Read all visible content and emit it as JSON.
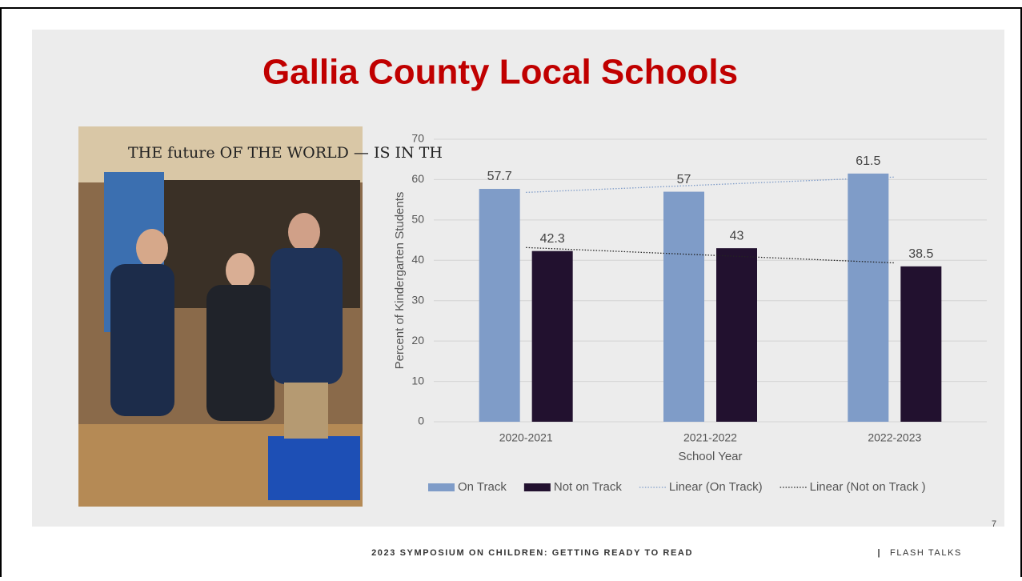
{
  "slide_title": "Gallia County Local Schools",
  "photo_text": "THE future OF THE WORLD — IS IN TH",
  "chart_data": {
    "type": "bar",
    "categories": [
      "2020-2021",
      "2021-2022",
      "2022-2023"
    ],
    "series": [
      {
        "name": "On Track",
        "color": "#7f9cc8",
        "values": [
          57.7,
          57,
          61.5
        ],
        "trendline": {
          "name": "Linear (On Track)",
          "color": "#7f9cc8"
        }
      },
      {
        "name": "Not on Track",
        "color": "#22112f",
        "values": [
          42.3,
          43,
          38.5
        ],
        "trendline": {
          "name": "Linear (Not on Track )",
          "color": "#222222"
        }
      }
    ],
    "xlabel": "School Year",
    "ylabel": "Percent of Kindergarten Students",
    "ylim": [
      0,
      70
    ],
    "yticks": [
      0,
      10,
      20,
      30,
      40,
      50,
      60,
      70
    ],
    "grid": true
  },
  "page_number": "7",
  "footer": {
    "event": "2023 SYMPOSIUM ON CHILDREN: GETTING READY TO READ",
    "separator": "|",
    "section": "FLASH TALKS"
  }
}
